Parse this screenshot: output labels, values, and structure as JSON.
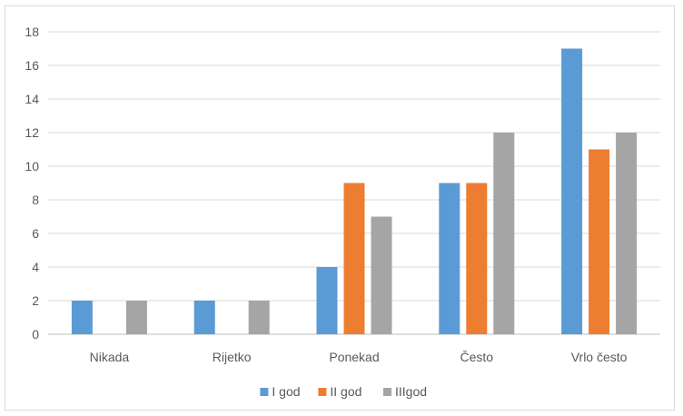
{
  "chart_data": {
    "type": "bar",
    "categories": [
      "Nikada",
      "Rijetko",
      "Ponekad",
      "Često",
      "Vrlo često"
    ],
    "series": [
      {
        "name": "I god",
        "color": "#5b9bd5",
        "values": [
          2,
          2,
          4,
          9,
          17
        ]
      },
      {
        "name": "II god",
        "color": "#ed7d31",
        "values": [
          0,
          0,
          9,
          9,
          11
        ]
      },
      {
        "name": "IIIgod",
        "color": "#a5a5a5",
        "values": [
          2,
          2,
          7,
          12,
          12
        ]
      }
    ],
    "ylim": [
      0,
      18
    ],
    "yticks": [
      "0",
      "2",
      "4",
      "6",
      "8",
      "10",
      "12",
      "14",
      "16",
      "18"
    ],
    "grid": true,
    "legend_position": "bottom"
  }
}
